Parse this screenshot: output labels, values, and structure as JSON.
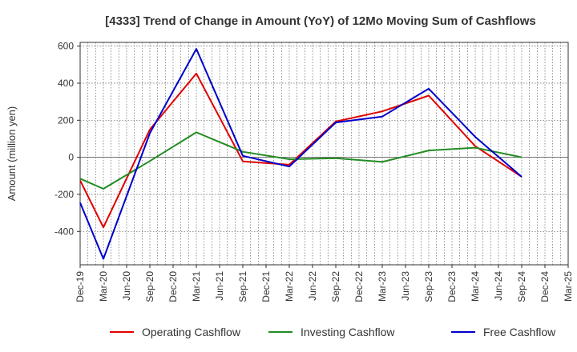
{
  "chart_data": {
    "type": "line",
    "title": "[4333]  Trend of Change in Amount (YoY) of 12Mo Moving Sum of Cashflows",
    "ylabel": "Amount (million yen)",
    "xlabel": "",
    "ylim": [
      -580,
      620
    ],
    "yticks": [
      600,
      400,
      200,
      0,
      -200,
      -400
    ],
    "categories": [
      "Dec-19",
      "Mar-20",
      "Jun-20",
      "Sep-20",
      "Dec-20",
      "Mar-21",
      "Jun-21",
      "Sep-21",
      "Dec-21",
      "Mar-22",
      "Jun-22",
      "Sep-22",
      "Dec-22",
      "Mar-23",
      "Jun-23",
      "Sep-23",
      "Dec-23",
      "Mar-24",
      "Jun-24",
      "Sep-24",
      "Dec-24",
      "Mar-25"
    ],
    "series": [
      {
        "name": "Operating Cashflow",
        "color": "#e00000",
        "values": [
          -125,
          -378,
          null,
          150,
          null,
          452,
          null,
          -22,
          null,
          -40,
          null,
          193,
          null,
          248,
          null,
          333,
          null,
          60,
          null,
          -105,
          null,
          null
        ]
      },
      {
        "name": "Investing Cashflow",
        "color": "#228b22",
        "values": [
          -115,
          -170,
          null,
          -20,
          null,
          135,
          null,
          30,
          null,
          -10,
          null,
          -5,
          null,
          -25,
          null,
          37,
          null,
          52,
          null,
          0,
          null,
          null
        ]
      },
      {
        "name": "Free Cashflow",
        "color": "#0000cc",
        "values": [
          -245,
          -548,
          null,
          130,
          null,
          585,
          null,
          8,
          null,
          -50,
          null,
          188,
          null,
          220,
          null,
          370,
          null,
          110,
          null,
          -105,
          null,
          null
        ]
      }
    ],
    "grid": true,
    "legend_position": "bottom"
  }
}
